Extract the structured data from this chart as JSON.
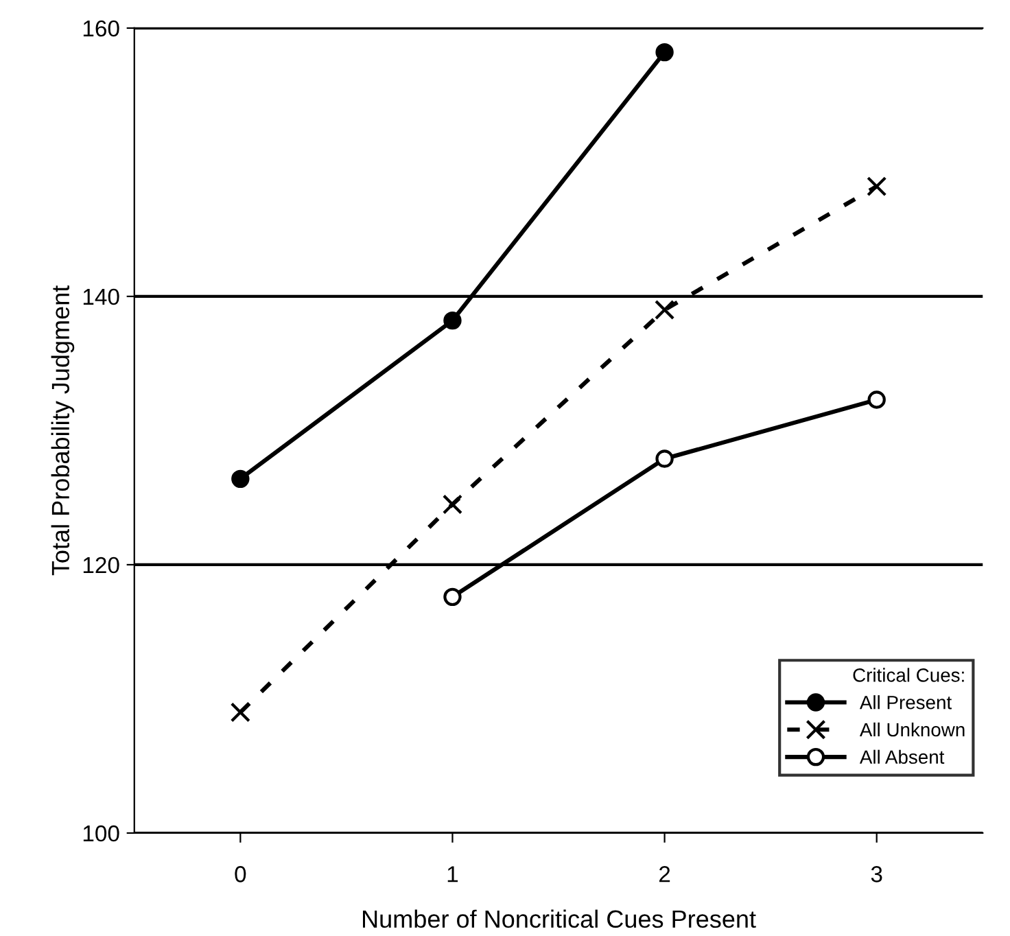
{
  "chart_data": {
    "type": "line",
    "xlabel": "Number of Noncritical Cues Present",
    "ylabel": "Total Probability Judgment",
    "legend_title": "Critical Cues:",
    "series": [
      {
        "name": "All Present",
        "color": "#000000",
        "marker": "circle",
        "line_style": "solid",
        "x": [
          0,
          1,
          2
        ],
        "values": [
          126.4,
          138.2,
          158.2
        ]
      },
      {
        "name": "All Unknown",
        "color": "#000000",
        "marker": "cross",
        "line_style": "dashed",
        "x": [
          0,
          1,
          2,
          3
        ],
        "values": [
          109.0,
          124.5,
          139.0,
          148.2
        ]
      },
      {
        "name": "All Absent",
        "color": "#000000",
        "marker": "circle",
        "line_style": "solid",
        "x": [
          1,
          2,
          3
        ],
        "values": [
          117.6,
          127.9,
          132.3
        ]
      }
    ],
    "xlim": [
      -0.5,
      3.5
    ],
    "xticks": [
      0,
      1,
      2,
      3
    ],
    "ylim": [
      100,
      160
    ],
    "yticks": [
      100,
      120,
      140,
      160
    ],
    "grid": "y",
    "legend": "bottom right"
  }
}
